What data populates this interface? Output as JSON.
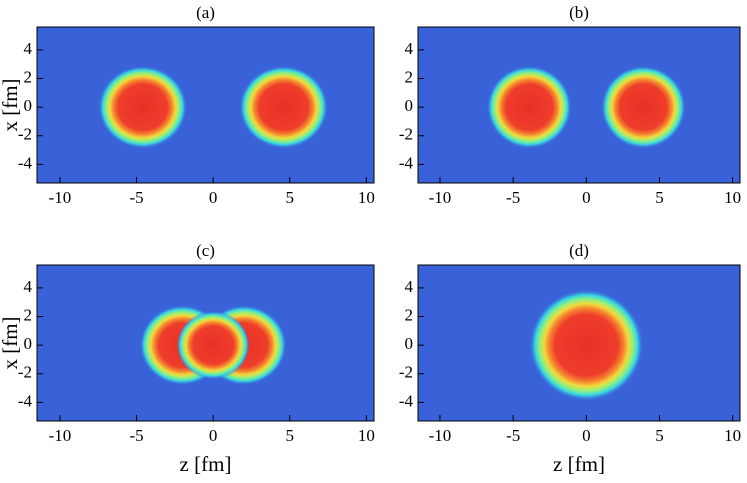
{
  "chart_data": [
    {
      "type": "density",
      "title": "(a)",
      "y_label": "x [fm]",
      "xlim": [
        -11.5,
        10.5
      ],
      "ylim": [
        -5.3,
        5.6
      ],
      "xticks": [
        -10,
        -5,
        0,
        5,
        10
      ],
      "yticks": [
        -4,
        -2,
        0,
        2,
        4
      ],
      "blobs": [
        {
          "z": -4.6,
          "x": 0,
          "r": 2.9
        },
        {
          "z": 4.6,
          "x": 0,
          "r": 2.9
        }
      ]
    },
    {
      "type": "density",
      "title": "(b)",
      "xlim": [
        -11.5,
        10.5
      ],
      "ylim": [
        -5.3,
        5.6
      ],
      "xticks": [
        -10,
        -5,
        0,
        5,
        10
      ],
      "yticks": [
        -4,
        -2,
        0,
        2,
        4
      ],
      "blobs": [
        {
          "z": -3.9,
          "x": 0,
          "r": 2.9
        },
        {
          "z": 3.9,
          "x": 0,
          "r": 2.9
        }
      ]
    },
    {
      "type": "density",
      "title": "(c)",
      "x_label": "z [fm]",
      "y_label": "x [fm]",
      "xlim": [
        -11.5,
        10.5
      ],
      "ylim": [
        -5.3,
        5.6
      ],
      "xticks": [
        -10,
        -5,
        0,
        5,
        10
      ],
      "yticks": [
        -4,
        -2,
        0,
        2,
        4
      ],
      "blobs": [
        {
          "z": -2.0,
          "x": 0,
          "r": 2.8
        },
        {
          "z": 2.0,
          "x": 0,
          "r": 2.8
        },
        {
          "z": 0,
          "x": 0,
          "r": 2.4
        }
      ]
    },
    {
      "type": "density",
      "title": "(d)",
      "x_label": "z [fm]",
      "xlim": [
        -11.5,
        10.5
      ],
      "ylim": [
        -5.3,
        5.6
      ],
      "xticks": [
        -10,
        -5,
        0,
        5,
        10
      ],
      "yticks": [
        -4,
        -2,
        0,
        2,
        4
      ],
      "blobs": [
        {
          "z": 0,
          "x": 0,
          "r": 3.9
        }
      ]
    }
  ]
}
